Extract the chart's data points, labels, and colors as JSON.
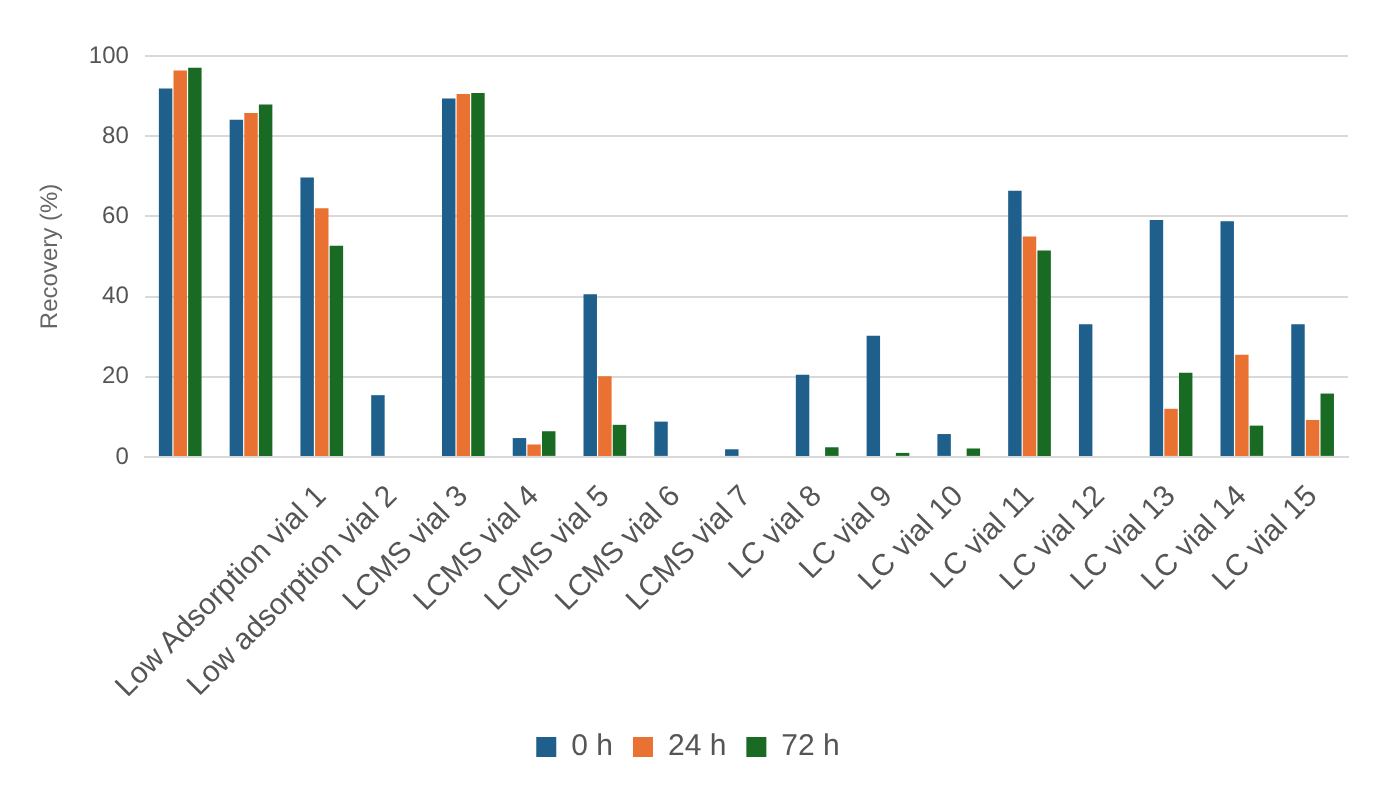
{
  "chart_data": {
    "type": "bar",
    "ylabel": "Recovery (%)",
    "categories": [
      null,
      null,
      "Low Adsorption vial 1",
      "Low adsorption vial 2",
      "LCMS vial 3",
      "LCMS vial 4",
      "LCMS vial 5",
      "LCMS vial 6",
      "LCMS vial 7",
      "LC vial 8",
      "LC vial 9",
      "LC vial 10",
      "LC vial 11",
      "LC vial 12",
      "LC vial 13",
      "LC vial 14",
      "LC vial 15"
    ],
    "series": [
      {
        "name": "0 h",
        "color": "#1f5f8b",
        "values": [
          91.9,
          84.1,
          69.7,
          15.4,
          89.4,
          4.7,
          40.6,
          8.8,
          1.9,
          20.5,
          30.2,
          5.7,
          66.4,
          33.1,
          59.1,
          58.8,
          33.1
        ]
      },
      {
        "name": "24 h",
        "color": "#e97132",
        "values": [
          96.4,
          85.8,
          62.0,
          0,
          90.5,
          3.1,
          20.1,
          0,
          0,
          null,
          null,
          0,
          55.0,
          0,
          12.0,
          25.5,
          9.2
        ]
      },
      {
        "name": "72 h",
        "color": "#196b24",
        "values": [
          97.1,
          87.9,
          52.7,
          0,
          90.8,
          6.4,
          8.0,
          0,
          0,
          2.4,
          1.0,
          2.1,
          51.5,
          0,
          21.0,
          7.8,
          15.8
        ]
      }
    ],
    "ylim": [
      0,
      100
    ],
    "yticks": [
      0,
      20,
      40,
      60,
      80,
      100
    ],
    "grid": "y",
    "legend": "bottom"
  }
}
